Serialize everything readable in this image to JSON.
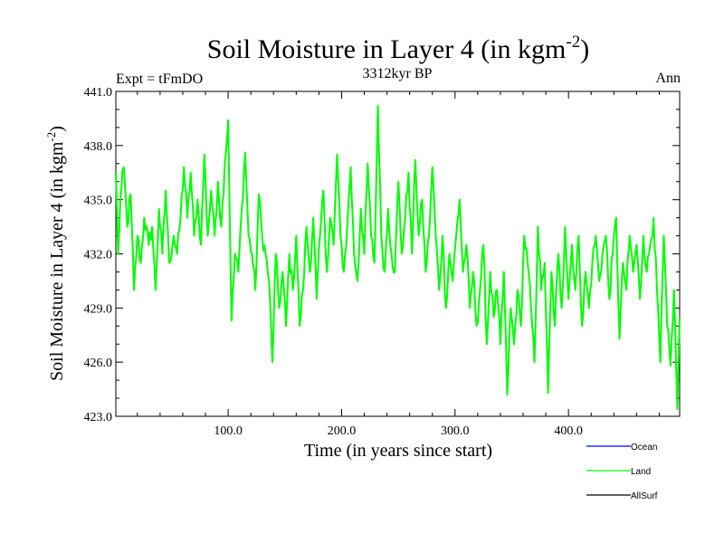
{
  "chart_data": {
    "type": "line",
    "title": "Soil Moisture in Layer 4 (in kgm",
    "title_superscript": "-2",
    "title_close": ")",
    "subtitle_left": "Expt = tFmDO",
    "subtitle_center": "3312kyr BP",
    "subtitle_right": "Ann",
    "xlabel": "Time (in years since start)",
    "ylabel": "Soil Moisture in Layer 4 (in kgm",
    "ylabel_superscript": "-2",
    "ylabel_close": ")",
    "xlim": [
      1,
      498
    ],
    "ylim": [
      423.0,
      441.0
    ],
    "x_ticks": [
      100,
      200,
      300,
      400
    ],
    "x_tick_labels": [
      "100.0",
      "200.0",
      "300.0",
      "400.0"
    ],
    "y_ticks": [
      423,
      426,
      429,
      432,
      435,
      438,
      441
    ],
    "y_tick_labels": [
      "423.0",
      "426.0",
      "429.0",
      "432.0",
      "435.0",
      "438.0",
      "441.0"
    ],
    "legend": [
      {
        "name": "Ocean",
        "color": "#0000ff"
      },
      {
        "name": "Land",
        "color": "#00ff00"
      },
      {
        "name": "AllSurf",
        "color": "#000000"
      }
    ],
    "series": [
      {
        "name": "Land",
        "color": "#00ff00",
        "anchors": [
          [
            1,
            436.5
          ],
          [
            3,
            432.0
          ],
          [
            5,
            435.0
          ],
          [
            8,
            436.8
          ],
          [
            11,
            433.5
          ],
          [
            14,
            435.3
          ],
          [
            17,
            430.0
          ],
          [
            20,
            433.0
          ],
          [
            23,
            431.5
          ],
          [
            26,
            434.0
          ],
          [
            30,
            432.5
          ],
          [
            33,
            433.5
          ],
          [
            36,
            430.0
          ],
          [
            39,
            434.5
          ],
          [
            42,
            432.0
          ],
          [
            45,
            435.5
          ],
          [
            48,
            431.5
          ],
          [
            52,
            433.0
          ],
          [
            55,
            432.0
          ],
          [
            58,
            434.0
          ],
          [
            61,
            436.8
          ],
          [
            64,
            434.0
          ],
          [
            67,
            436.5
          ],
          [
            70,
            433.0
          ],
          [
            73,
            435.0
          ],
          [
            76,
            432.5
          ],
          [
            79,
            437.5
          ],
          [
            82,
            433.0
          ],
          [
            85,
            435.5
          ],
          [
            88,
            433.0
          ],
          [
            91,
            436.0
          ],
          [
            94,
            433.5
          ],
          [
            97,
            437.0
          ],
          [
            100,
            439.4
          ],
          [
            103,
            428.3
          ],
          [
            106,
            432.0
          ],
          [
            109,
            431.0
          ],
          [
            112,
            434.5
          ],
          [
            115,
            437.6
          ],
          [
            118,
            433.0
          ],
          [
            121,
            432.0
          ],
          [
            124,
            430.0
          ],
          [
            127,
            435.3
          ],
          [
            130,
            433.0
          ],
          [
            133,
            432.0
          ],
          [
            136,
            430.5
          ],
          [
            139,
            426.0
          ],
          [
            142,
            432.0
          ],
          [
            145,
            429.0
          ],
          [
            148,
            431.0
          ],
          [
            151,
            428.0
          ],
          [
            154,
            432.0
          ],
          [
            157,
            430.0
          ],
          [
            160,
            433.0
          ],
          [
            163,
            428.0
          ],
          [
            166,
            430.0
          ],
          [
            169,
            433.5
          ],
          [
            172,
            431.0
          ],
          [
            175,
            434.0
          ],
          [
            178,
            429.5
          ],
          [
            181,
            433.0
          ],
          [
            184,
            435.5
          ],
          [
            187,
            431.0
          ],
          [
            190,
            434.0
          ],
          [
            193,
            432.5
          ],
          [
            196,
            437.5
          ],
          [
            199,
            433.0
          ],
          [
            202,
            431.0
          ],
          [
            205,
            433.5
          ],
          [
            208,
            436.8
          ],
          [
            211,
            432.0
          ],
          [
            214,
            430.5
          ],
          [
            217,
            434.5
          ],
          [
            220,
            432.0
          ],
          [
            223,
            437.0
          ],
          [
            226,
            433.0
          ],
          [
            229,
            431.5
          ],
          [
            232,
            440.2
          ],
          [
            235,
            433.0
          ],
          [
            238,
            431.0
          ],
          [
            241,
            434.5
          ],
          [
            244,
            432.0
          ],
          [
            247,
            431.0
          ],
          [
            250,
            436.0
          ],
          [
            253,
            432.0
          ],
          [
            256,
            434.0
          ],
          [
            259,
            436.5
          ],
          [
            262,
            432.0
          ],
          [
            265,
            437.2
          ],
          [
            268,
            433.0
          ],
          [
            271,
            435.0
          ],
          [
            274,
            431.0
          ],
          [
            277,
            433.0
          ],
          [
            280,
            436.8
          ],
          [
            283,
            433.0
          ],
          [
            286,
            430.0
          ],
          [
            289,
            433.0
          ],
          [
            292,
            429.0
          ],
          [
            295,
            432.0
          ],
          [
            298,
            430.5
          ],
          [
            301,
            433.0
          ],
          [
            304,
            435.0
          ],
          [
            307,
            431.0
          ],
          [
            310,
            432.5
          ],
          [
            313,
            429.0
          ],
          [
            316,
            431.0
          ],
          [
            319,
            428.0
          ],
          [
            322,
            430.0
          ],
          [
            325,
            432.5
          ],
          [
            328,
            427.0
          ],
          [
            331,
            431.0
          ],
          [
            334,
            428.5
          ],
          [
            337,
            430.0
          ],
          [
            340,
            427.0
          ],
          [
            343,
            431.0
          ],
          [
            346,
            424.2
          ],
          [
            349,
            429.0
          ],
          [
            352,
            427.0
          ],
          [
            355,
            430.0
          ],
          [
            358,
            428.0
          ],
          [
            361,
            433.0
          ],
          [
            364,
            431.5
          ],
          [
            367,
            429.0
          ],
          [
            370,
            426.0
          ],
          [
            373,
            433.5
          ],
          [
            376,
            430.0
          ],
          [
            379,
            431.5
          ],
          [
            382,
            424.3
          ],
          [
            385,
            431.0
          ],
          [
            388,
            428.0
          ],
          [
            391,
            432.0
          ],
          [
            394,
            429.0
          ],
          [
            397,
            433.5
          ],
          [
            400,
            429.5
          ],
          [
            403,
            432.5
          ],
          [
            406,
            430.0
          ],
          [
            409,
            433.0
          ],
          [
            412,
            428.0
          ],
          [
            415,
            431.0
          ],
          [
            418,
            429.0
          ],
          [
            421,
            431.5
          ],
          [
            424,
            433.0
          ],
          [
            427,
            430.5
          ],
          [
            430,
            432.0
          ],
          [
            433,
            433.0
          ],
          [
            436,
            429.5
          ],
          [
            439,
            432.0
          ],
          [
            442,
            434.0
          ],
          [
            445,
            427.3
          ],
          [
            448,
            431.5
          ],
          [
            451,
            430.0
          ],
          [
            454,
            433.0
          ],
          [
            457,
            431.0
          ],
          [
            460,
            432.5
          ],
          [
            463,
            429.5
          ],
          [
            466,
            433.0
          ],
          [
            469,
            431.0
          ],
          [
            472,
            432.5
          ],
          [
            475,
            434.0
          ],
          [
            478,
            430.0
          ],
          [
            481,
            426.0
          ],
          [
            484,
            433.0
          ],
          [
            487,
            428.0
          ],
          [
            490,
            425.8
          ],
          [
            493,
            430.0
          ],
          [
            496,
            423.4
          ],
          [
            498,
            428.5
          ]
        ]
      }
    ]
  }
}
